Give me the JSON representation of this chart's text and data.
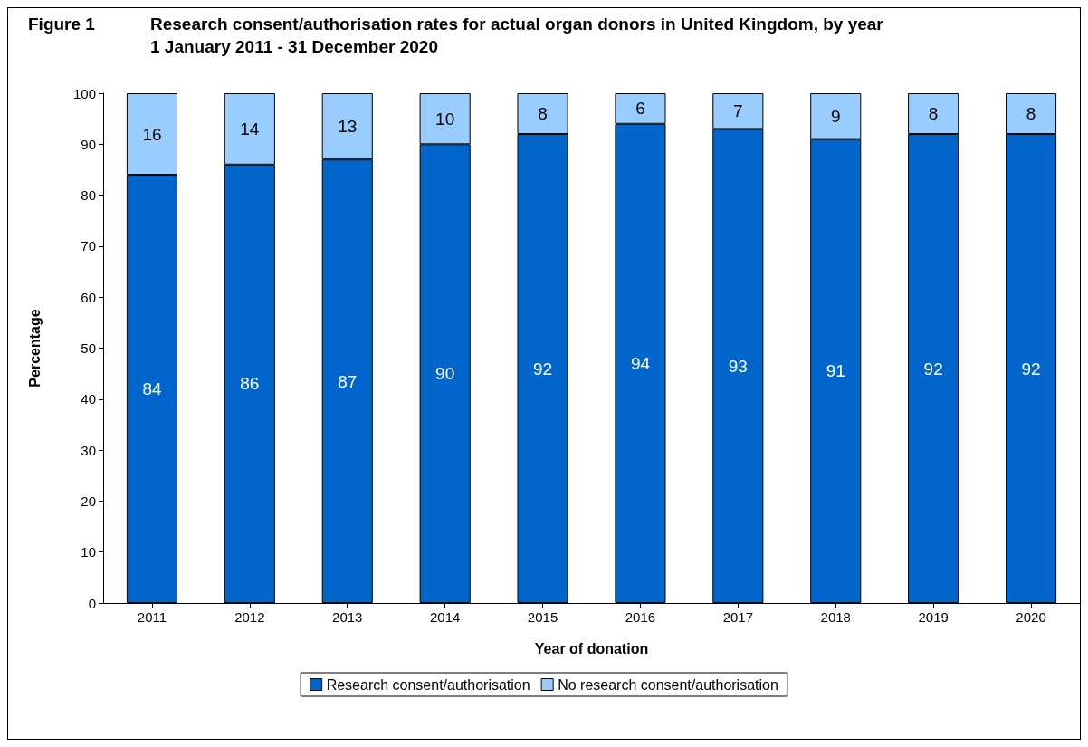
{
  "chart_data": {
    "type": "bar",
    "title": "Research consent/authorisation rates for actual organ donors in United Kingdom, by year",
    "subtitle": "1 January 2011 - 31 December 2020",
    "annotations": [
      "Figure 1"
    ],
    "xlabel": "Year of donation",
    "ylabel": "Percentage",
    "categories": [
      "2011",
      "2012",
      "2013",
      "2014",
      "2015",
      "2016",
      "2017",
      "2018",
      "2019",
      "2020"
    ],
    "stacked": true,
    "data_labels": true,
    "grid": false,
    "legend": "bottom",
    "ylim": [
      0,
      100
    ],
    "yticks": [
      0,
      10,
      20,
      30,
      40,
      50,
      60,
      70,
      80,
      90,
      100
    ],
    "series": [
      {
        "name": "Research consent/authorisation",
        "color": "#0066cc",
        "values": [
          84,
          86,
          87,
          90,
          92,
          94,
          93,
          91,
          92,
          92
        ]
      },
      {
        "name": "No research consent/authorisation",
        "color": "#99ccff",
        "values": [
          16,
          14,
          13,
          10,
          8,
          6,
          7,
          9,
          8,
          8
        ]
      }
    ]
  }
}
